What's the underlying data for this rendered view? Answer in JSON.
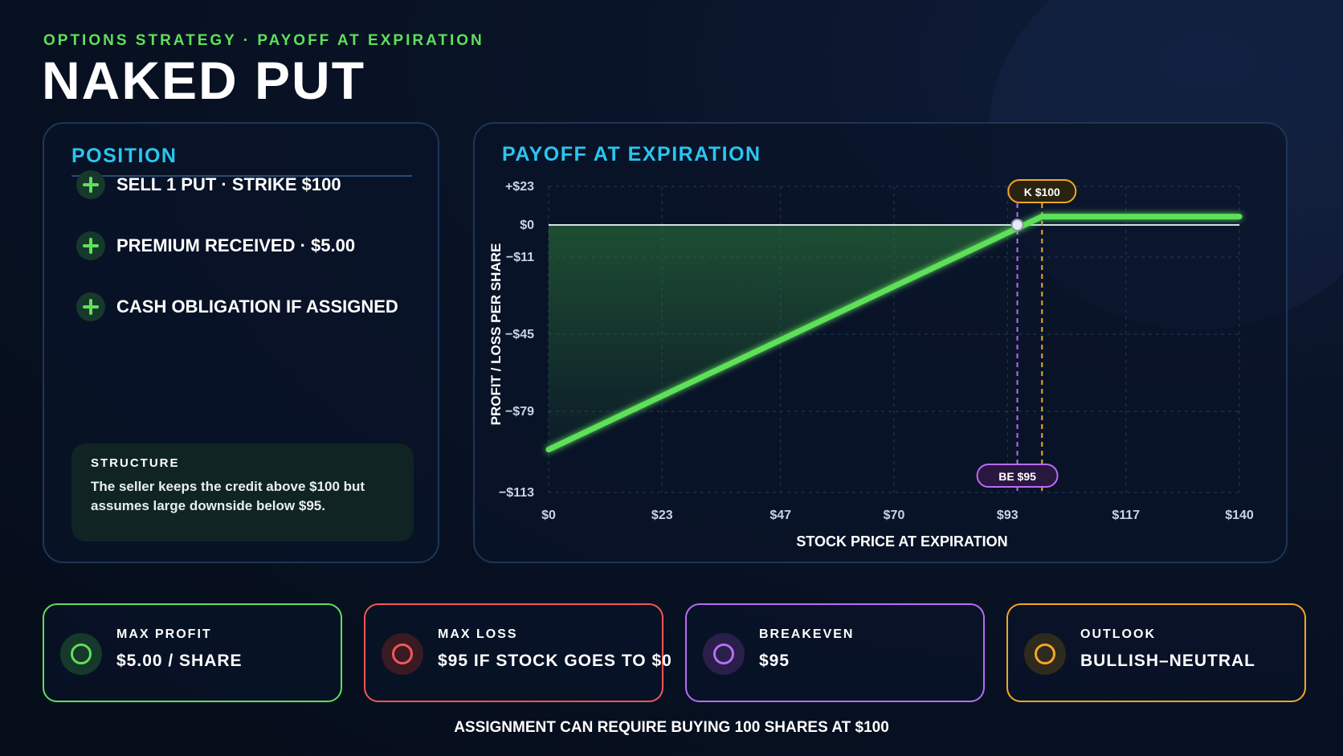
{
  "header": {
    "eyebrow": "OPTIONS STRATEGY · PAYOFF AT EXPIRATION",
    "title": "NAKED PUT"
  },
  "position": {
    "heading": "POSITION",
    "items": [
      {
        "icon": "plus-icon",
        "label": "SELL 1 PUT · STRIKE $100"
      },
      {
        "icon": "plus-icon",
        "label": "PREMIUM RECEIVED · $5.00"
      },
      {
        "icon": "plus-icon",
        "label": "CASH OBLIGATION IF ASSIGNED"
      }
    ],
    "structure": {
      "label": "STRUCTURE",
      "text": "The seller keeps the credit above $100 but assumes large downside below $95."
    }
  },
  "chart_panel": {
    "heading": "PAYOFF AT EXPIRATION"
  },
  "chart_data": {
    "type": "line",
    "title": "PAYOFF AT EXPIRATION",
    "xlabel": "STOCK PRICE AT EXPIRATION",
    "ylabel": "PROFIT / LOSS PER SHARE",
    "xlim": [
      0,
      140
    ],
    "ylim": [
      -113,
      23
    ],
    "x_ticks": [
      0,
      23,
      47,
      70,
      93,
      117,
      140
    ],
    "x_tick_labels": [
      "$0",
      "$23",
      "$47",
      "$70",
      "$93",
      "$117",
      "$140"
    ],
    "y_ticks": [
      23,
      0,
      -11,
      -45,
      -79,
      -113
    ],
    "y_tick_labels": [
      "+$23",
      "$0",
      "−$11",
      "−$45",
      "−$79",
      "−$113"
    ],
    "grid": true,
    "series": [
      {
        "x": [
          0,
          100,
          140
        ],
        "y": [
          -95,
          5,
          5
        ],
        "color": "#5fe05a"
      }
    ],
    "zero_line": 0,
    "loss_fill_color": "#2e7d3a",
    "markers": [
      {
        "label": "K $100",
        "x": 100,
        "color": "#f5a623"
      },
      {
        "label": "BE $95",
        "x": 95,
        "color": "#b86cf5"
      }
    ],
    "breakeven_point": {
      "x": 95,
      "y": 0
    }
  },
  "cards": [
    {
      "label": "MAX PROFIT",
      "value": "$5.00 / SHARE",
      "color": "#5fe05a",
      "icon_bg": "#16392b",
      "icon": "circle-icon"
    },
    {
      "label": "MAX LOSS",
      "value": "$95 IF STOCK GOES TO $0",
      "color": "#f25757",
      "icon_bg": "#3a1a22",
      "icon": "circle-icon"
    },
    {
      "label": "BREAKEVEN",
      "value": "$95",
      "color": "#b86cf5",
      "icon_bg": "#2a1f48",
      "icon": "circle-icon"
    },
    {
      "label": "OUTLOOK",
      "value": "BULLISH–NEUTRAL",
      "color": "#f5a623",
      "icon_bg": "#2e2a1e",
      "icon": "circle-icon"
    }
  ],
  "footnote": "ASSIGNMENT CAN REQUIRE BUYING 100 SHARES AT $100"
}
